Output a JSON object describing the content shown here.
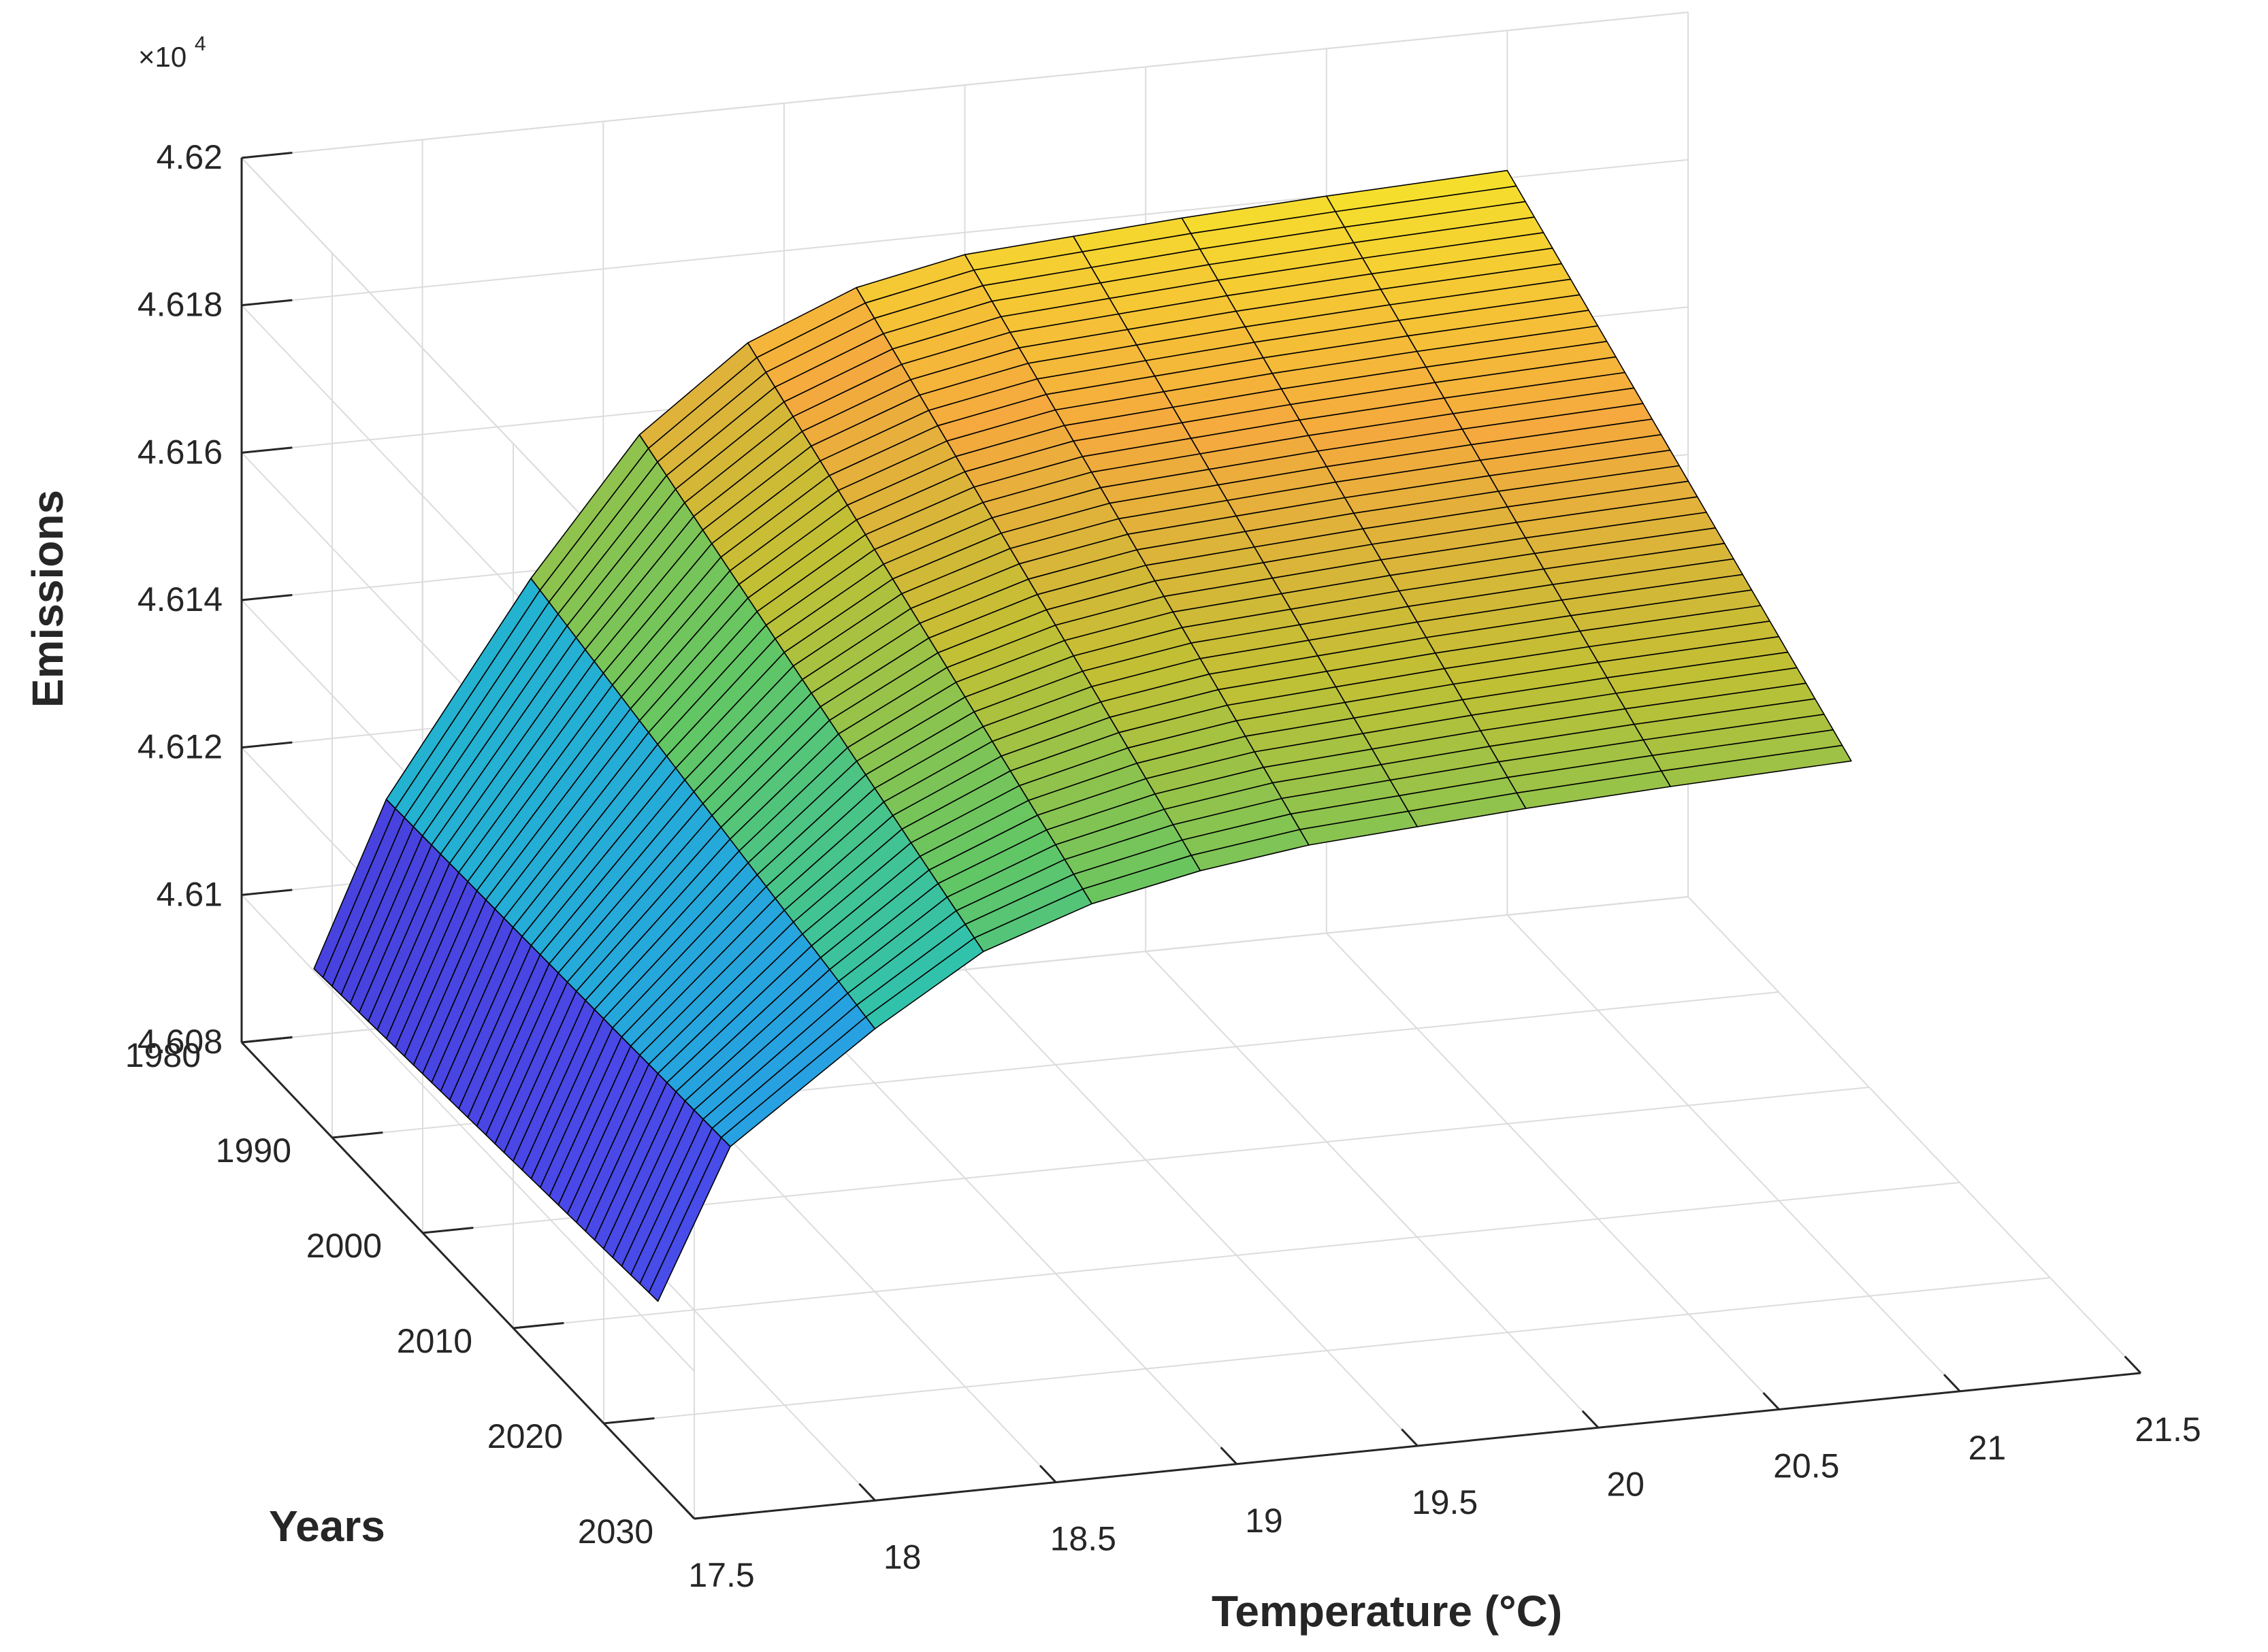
{
  "chart_data": {
    "type": "surface",
    "title": "",
    "xlabel": "Temperature (°C)",
    "ylabel": "Years",
    "zlabel": "Emissions",
    "z_exponent_base": "×10",
    "z_exponent_power": "4",
    "x_ticks": [
      "17.5",
      "18",
      "18.5",
      "19",
      "19.5",
      "20",
      "20.5",
      "21",
      "21.5"
    ],
    "x_tick_values": [
      17.5,
      18,
      18.5,
      19,
      19.5,
      20,
      20.5,
      21,
      21.5
    ],
    "y_ticks": [
      "1980",
      "1990",
      "2000",
      "2010",
      "2020",
      "2030"
    ],
    "y_tick_values": [
      1980,
      1990,
      2000,
      2010,
      2020,
      2030
    ],
    "z_ticks": [
      "4.608",
      "4.61",
      "4.612",
      "4.614",
      "4.616",
      "4.618",
      "4.62"
    ],
    "z_tick_values": [
      4.608,
      4.61,
      4.612,
      4.614,
      4.616,
      4.618,
      4.62
    ],
    "xlim": [
      17.5,
      21.5
    ],
    "ylim": [
      1980,
      2030
    ],
    "zlim": [
      4.608,
      4.62
    ],
    "grid": true,
    "colormap": "parula",
    "colormap_stops": [
      "#3e26a8",
      "#4a48e8",
      "#2a8ff2",
      "#21c0c4",
      "#62c664",
      "#c1c034",
      "#f5a93e",
      "#f5e32b"
    ],
    "edge_color": "#000000",
    "y_from": 1980,
    "y_to": 2018,
    "y_step": 1,
    "x_profile": [
      17.7,
      17.9,
      18.3,
      18.6,
      18.9,
      19.2,
      19.5,
      19.8,
      20.1,
      20.5,
      21.0
    ],
    "z_profile_back": [
      4.6089,
      4.6111,
      4.6139,
      4.6157,
      4.6168,
      4.6174,
      4.6177,
      4.6178,
      4.6179,
      4.618,
      4.6181
    ],
    "z_profile_front": [
      4.6093,
      4.6113,
      4.6127,
      4.6136,
      4.6141,
      4.6144,
      4.6146,
      4.6147,
      4.6148,
      4.6149,
      4.615
    ]
  }
}
